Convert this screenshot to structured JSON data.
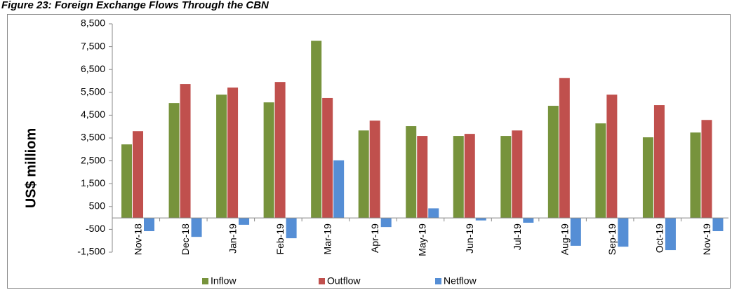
{
  "chart_data": {
    "type": "bar",
    "title": "Figure 23: Foreign Exchange Flows Through the CBN",
    "y_label": "US$ milliom",
    "categories": [
      "Nov-18",
      "Dec-18",
      "Jan-19",
      "Feb-19",
      "Mar-19",
      "Apr-19",
      "May-19",
      "Jun-19",
      "Jul-19",
      "Aug-19",
      "Sep-19",
      "Oct-19",
      "Nov-19"
    ],
    "series": [
      {
        "name": "Inflow",
        "color": "#77933c",
        "values": [
          3220,
          5030,
          5400,
          5060,
          7760,
          3830,
          4020,
          3590,
          3590,
          4910,
          4140,
          3530,
          3740
        ]
      },
      {
        "name": "Outflow",
        "color": "#c0504d",
        "values": [
          3800,
          5860,
          5710,
          5950,
          5250,
          4260,
          3590,
          3680,
          3830,
          6130,
          5400,
          4940,
          4290
        ]
      },
      {
        "name": "Netflow",
        "color": "#558ed5",
        "values": [
          -580,
          -830,
          -300,
          -890,
          2520,
          -400,
          420,
          -110,
          -210,
          -1220,
          -1260,
          -1410,
          -580
        ]
      }
    ],
    "ylim": [
      -1500,
      8500
    ],
    "yticks": [
      {
        "value": -1500,
        "label": "-1,500"
      },
      -500,
      500,
      {
        "value": 1500,
        "label": "1,500"
      },
      {
        "value": 2500,
        "label": "2,500"
      },
      {
        "value": 3500,
        "label": "3,500"
      },
      {
        "value": 4500,
        "label": "4,500"
      },
      {
        "value": 5500,
        "label": "5,500"
      },
      {
        "value": 6500,
        "label": "6,500"
      },
      {
        "value": 7500,
        "label": "7,500"
      },
      {
        "value": 8500,
        "label": "8,500"
      }
    ],
    "grid": false,
    "legend": "bottom"
  }
}
